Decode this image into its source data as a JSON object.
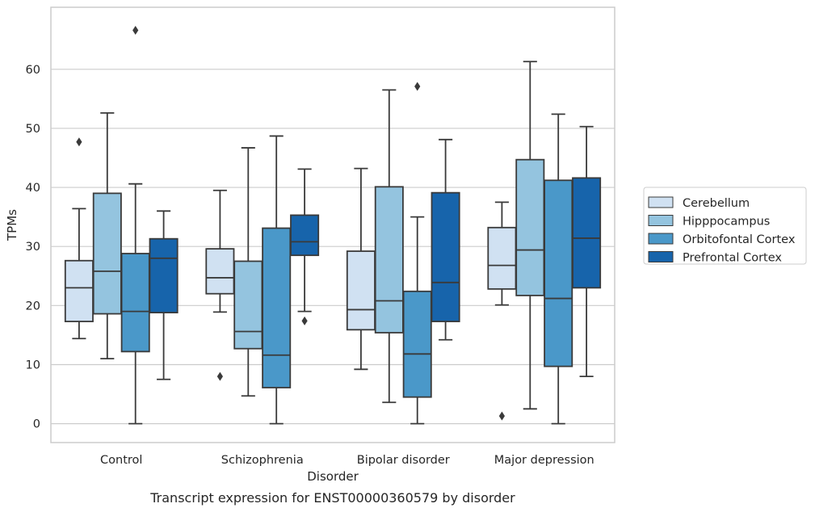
{
  "chart_data": {
    "type": "box",
    "title": "Transcript expression for ENST00000360579 by disorder",
    "xlabel": "Disorder",
    "ylabel": "TPMs",
    "categories": [
      "Control",
      "Schizophrenia",
      "Bipolar disorder",
      "Major depression"
    ],
    "yticks": [
      0,
      10,
      20,
      30,
      40,
      50,
      60
    ],
    "ylim": [
      -3.2,
      70.5
    ],
    "grid": "horizontal",
    "legend_position": "right",
    "series": [
      {
        "name": "Cerebellum",
        "color": "#d0e1f2",
        "boxes": [
          {
            "whisker_low": 14.4,
            "q1": 17.3,
            "median": 23.0,
            "q3": 27.6,
            "whisker_high": 36.4,
            "outliers": [
              47.7
            ]
          },
          {
            "whisker_low": 18.9,
            "q1": 22.0,
            "median": 24.7,
            "q3": 29.6,
            "whisker_high": 39.5,
            "outliers": [
              8.0
            ]
          },
          {
            "whisker_low": 9.2,
            "q1": 15.9,
            "median": 19.3,
            "q3": 29.2,
            "whisker_high": 43.2,
            "outliers": []
          },
          {
            "whisker_low": 20.1,
            "q1": 22.8,
            "median": 26.8,
            "q3": 33.2,
            "whisker_high": 37.5,
            "outliers": [
              1.3
            ]
          }
        ]
      },
      {
        "name": "Hipppocampus",
        "color": "#94c4df",
        "boxes": [
          {
            "whisker_low": 11.0,
            "q1": 18.6,
            "median": 25.8,
            "q3": 39.0,
            "whisker_high": 52.6,
            "outliers": []
          },
          {
            "whisker_low": 4.7,
            "q1": 12.7,
            "median": 15.6,
            "q3": 27.5,
            "whisker_high": 46.7,
            "outliers": []
          },
          {
            "whisker_low": 3.6,
            "q1": 15.4,
            "median": 20.8,
            "q3": 40.1,
            "whisker_high": 56.5,
            "outliers": []
          },
          {
            "whisker_low": 2.5,
            "q1": 21.7,
            "median": 29.4,
            "q3": 44.7,
            "whisker_high": 61.3,
            "outliers": []
          }
        ]
      },
      {
        "name": "Orbitofontal Cortex",
        "color": "#4a98c9",
        "boxes": [
          {
            "whisker_low": 0.0,
            "q1": 12.2,
            "median": 19.0,
            "q3": 28.8,
            "whisker_high": 40.6,
            "outliers": [
              66.6
            ]
          },
          {
            "whisker_low": 0.0,
            "q1": 6.1,
            "median": 11.6,
            "q3": 33.1,
            "whisker_high": 48.7,
            "outliers": []
          },
          {
            "whisker_low": 0.0,
            "q1": 4.5,
            "median": 11.8,
            "q3": 22.4,
            "whisker_high": 35.0,
            "outliers": [
              57.1
            ]
          },
          {
            "whisker_low": 0.0,
            "q1": 9.7,
            "median": 21.2,
            "q3": 41.2,
            "whisker_high": 52.4,
            "outliers": []
          }
        ]
      },
      {
        "name": "Prefrontal Cortex",
        "color": "#1764ab",
        "boxes": [
          {
            "whisker_low": 7.5,
            "q1": 18.8,
            "median": 28.0,
            "q3": 31.3,
            "whisker_high": 36.0,
            "outliers": []
          },
          {
            "whisker_low": 19.0,
            "q1": 28.5,
            "median": 30.8,
            "q3": 35.3,
            "whisker_high": 43.1,
            "outliers": [
              17.4
            ]
          },
          {
            "whisker_low": 14.2,
            "q1": 17.3,
            "median": 23.9,
            "q3": 39.1,
            "whisker_high": 48.1,
            "outliers": []
          },
          {
            "whisker_low": 8.0,
            "q1": 23.0,
            "median": 31.4,
            "q3": 41.6,
            "whisker_high": 50.3,
            "outliers": []
          }
        ]
      }
    ]
  }
}
